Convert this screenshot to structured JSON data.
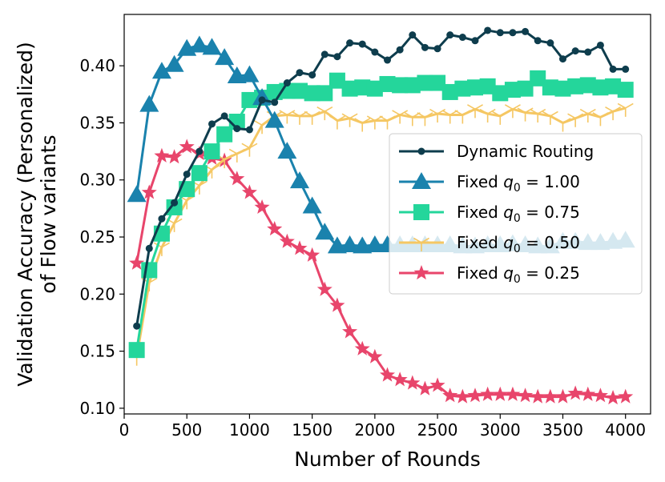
{
  "chart_data": {
    "type": "line",
    "xlabel": "Number of Rounds",
    "ylabel_line1": "Validation Accuracy (Personalized)",
    "ylabel_line2": "of Flow variants",
    "xlim": [
      0,
      4200
    ],
    "ylim": [
      0.095,
      0.445
    ],
    "x_ticks": [
      0,
      500,
      1000,
      1500,
      2000,
      2500,
      3000,
      3500,
      4000
    ],
    "x_tick_labels": [
      "0",
      "500",
      "1000",
      "1500",
      "2000",
      "2500",
      "3000",
      "3500",
      "4000"
    ],
    "y_ticks": [
      0.1,
      0.15,
      0.2,
      0.25,
      0.3,
      0.35,
      0.4
    ],
    "y_tick_labels": [
      "0.10",
      "0.15",
      "0.20",
      "0.25",
      "0.30",
      "0.35",
      "0.40"
    ],
    "legend_position": "center-right",
    "x": [
      100,
      200,
      300,
      400,
      500,
      600,
      700,
      800,
      900,
      1000,
      1100,
      1200,
      1300,
      1400,
      1500,
      1600,
      1700,
      1800,
      1900,
      2000,
      2100,
      2200,
      2300,
      2400,
      2500,
      2600,
      2700,
      2800,
      2900,
      3000,
      3100,
      3200,
      3300,
      3400,
      3500,
      3600,
      3700,
      3800,
      3900,
      4000
    ],
    "series": [
      {
        "name": "Dynamic Routing",
        "legend_prefix": "Dynamic Routing",
        "legend_sub": "",
        "legend_suffix": "",
        "color": "#0e3d4d",
        "marker": "circle",
        "values": [
          0.172,
          0.24,
          0.266,
          0.28,
          0.305,
          0.325,
          0.349,
          0.356,
          0.345,
          0.344,
          0.37,
          0.368,
          0.385,
          0.394,
          0.392,
          0.41,
          0.408,
          0.42,
          0.419,
          0.412,
          0.405,
          0.414,
          0.427,
          0.416,
          0.415,
          0.427,
          0.425,
          0.422,
          0.431,
          0.429,
          0.429,
          0.43,
          0.422,
          0.42,
          0.406,
          0.413,
          0.412,
          0.418,
          0.397,
          0.397
        ]
      },
      {
        "name": "Fixed q0 = 1.00",
        "legend_prefix": "Fixed ",
        "legend_sub": "0",
        "legend_suffix": " = 1.00",
        "color": "#1a82ad",
        "marker": "triangle",
        "values": [
          0.287,
          0.366,
          0.395,
          0.401,
          0.415,
          0.418,
          0.416,
          0.407,
          0.391,
          0.392,
          0.372,
          0.352,
          0.325,
          0.299,
          0.277,
          0.254,
          0.242,
          0.243,
          0.242,
          0.243,
          0.243,
          0.243,
          0.243,
          0.243,
          0.243,
          0.243,
          0.242,
          0.242,
          0.243,
          0.243,
          0.244,
          0.243,
          0.242,
          0.242,
          0.246,
          0.246,
          0.245,
          0.245,
          0.246,
          0.247
        ]
      },
      {
        "name": "Fixed q0 = 0.75",
        "legend_prefix": "Fixed ",
        "legend_sub": "0",
        "legend_suffix": " = 0.75",
        "color": "#24d69b",
        "marker": "square",
        "values": [
          0.151,
          0.221,
          0.253,
          0.276,
          0.292,
          0.306,
          0.325,
          0.34,
          0.351,
          0.37,
          0.372,
          0.377,
          0.378,
          0.378,
          0.376,
          0.376,
          0.387,
          0.38,
          0.381,
          0.38,
          0.384,
          0.383,
          0.383,
          0.385,
          0.385,
          0.377,
          0.38,
          0.381,
          0.382,
          0.376,
          0.379,
          0.38,
          0.389,
          0.381,
          0.38,
          0.382,
          0.383,
          0.381,
          0.382,
          0.379
        ]
      },
      {
        "name": "Fixed q0 = 0.50",
        "legend_prefix": "Fixed ",
        "legend_sub": "0",
        "legend_suffix": " = 0.50",
        "color": "#f5c763",
        "marker": "tri",
        "values": [
          0.145,
          0.21,
          0.241,
          0.262,
          0.282,
          0.295,
          0.309,
          0.318,
          0.323,
          0.328,
          0.348,
          0.356,
          0.357,
          0.356,
          0.356,
          0.36,
          0.352,
          0.354,
          0.35,
          0.352,
          0.352,
          0.357,
          0.355,
          0.355,
          0.358,
          0.357,
          0.357,
          0.362,
          0.358,
          0.356,
          0.362,
          0.359,
          0.358,
          0.356,
          0.35,
          0.354,
          0.358,
          0.355,
          0.36,
          0.363
        ]
      },
      {
        "name": "Fixed q0 = 0.25",
        "legend_prefix": "Fixed ",
        "legend_sub": "0",
        "legend_suffix": " = 0.25",
        "color": "#e8456b",
        "marker": "star",
        "values": [
          0.227,
          0.289,
          0.321,
          0.32,
          0.329,
          0.323,
          0.319,
          0.317,
          0.301,
          0.289,
          0.276,
          0.257,
          0.246,
          0.24,
          0.234,
          0.204,
          0.19,
          0.167,
          0.152,
          0.145,
          0.129,
          0.125,
          0.122,
          0.117,
          0.12,
          0.111,
          0.11,
          0.111,
          0.112,
          0.112,
          0.112,
          0.111,
          0.11,
          0.11,
          0.11,
          0.113,
          0.112,
          0.111,
          0.109,
          0.11
        ]
      }
    ]
  }
}
